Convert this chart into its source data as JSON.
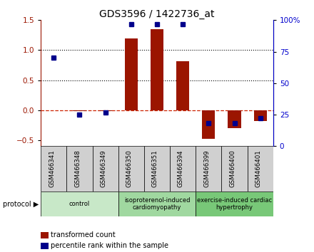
{
  "title": "GDS3596 / 1422736_at",
  "samples": [
    "GSM466341",
    "GSM466348",
    "GSM466349",
    "GSM466350",
    "GSM466351",
    "GSM466394",
    "GSM466399",
    "GSM466400",
    "GSM466401"
  ],
  "transformed_count": [
    0.0,
    -0.02,
    -0.02,
    1.2,
    1.35,
    0.82,
    -0.48,
    -0.3,
    -0.18
  ],
  "percentile_rank": [
    70.0,
    25.0,
    27.0,
    97.0,
    97.0,
    97.0,
    18.0,
    18.0,
    22.0
  ],
  "groups": [
    {
      "label": "control",
      "start": 0,
      "end": 3,
      "color": "#c8e8c8"
    },
    {
      "label": "isoproterenol-induced\ncardiomyopathy",
      "start": 3,
      "end": 6,
      "color": "#a0d8a0"
    },
    {
      "label": "exercise-induced cardiac\nhypertrophy",
      "start": 6,
      "end": 9,
      "color": "#78c878"
    }
  ],
  "left_ylim": [
    -0.6,
    1.5
  ],
  "right_ylim": [
    0,
    100
  ],
  "left_yticks": [
    -0.5,
    0.0,
    0.5,
    1.0,
    1.5
  ],
  "right_yticks": [
    0,
    25,
    50,
    75,
    100
  ],
  "bar_color": "#9b1500",
  "dot_color": "#00008b",
  "hline_color": "#cc2200",
  "dotted_levels": [
    0.5,
    1.0
  ],
  "background_color": "#ffffff",
  "legend_items": [
    "transformed count",
    "percentile rank within the sample"
  ]
}
